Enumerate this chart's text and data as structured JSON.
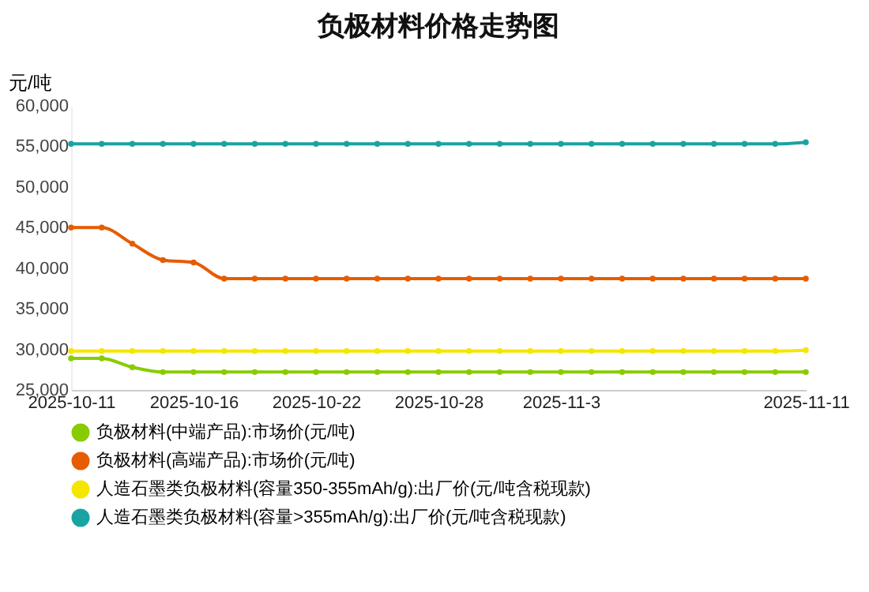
{
  "chart_data": {
    "type": "line",
    "title": "负极材料价格走势图",
    "ylabel": "元/吨",
    "categories": [
      "2025-10-11",
      null,
      null,
      null,
      "2025-10-16",
      null,
      null,
      null,
      "2025-10-22",
      null,
      null,
      null,
      "2025-10-28",
      null,
      null,
      null,
      "2025-11-3",
      null,
      null,
      null,
      null,
      null,
      null,
      null,
      "2025-11-11"
    ],
    "series": [
      {
        "name": "负极材料(中端产品):市场价(元/吨)",
        "color": "#88cc00",
        "values": [
          28900,
          28900,
          27800,
          27200,
          27200,
          27200,
          27200,
          27200,
          27200,
          27200,
          27200,
          27200,
          27200,
          27200,
          27200,
          27200,
          27200,
          27200,
          27200,
          27200,
          27200,
          27200,
          27200,
          27200,
          27200
        ]
      },
      {
        "name": "负极材料(高端产品):市场价(元/吨)",
        "color": "#e65c00",
        "values": [
          45000,
          45000,
          43000,
          41000,
          40700,
          38700,
          38700,
          38700,
          38700,
          38700,
          38700,
          38700,
          38700,
          38700,
          38700,
          38700,
          38700,
          38700,
          38700,
          38700,
          38700,
          38700,
          38700,
          38700,
          38700
        ]
      },
      {
        "name": "人造石墨类负极材料(容量350-355mAh/g):出厂价(元/吨含税现款)",
        "color": "#f5e600",
        "values": [
          29800,
          29800,
          29800,
          29800,
          29800,
          29800,
          29800,
          29800,
          29800,
          29800,
          29800,
          29800,
          29800,
          29800,
          29800,
          29800,
          29800,
          29800,
          29800,
          29800,
          29800,
          29800,
          29800,
          29800,
          29900
        ]
      },
      {
        "name": "人造石墨类负极材料(容量>355mAh/g):出厂价(元/吨含税现款)",
        "color": "#1aa3a3",
        "values": [
          55300,
          55300,
          55300,
          55300,
          55300,
          55300,
          55300,
          55300,
          55300,
          55300,
          55300,
          55300,
          55300,
          55300,
          55300,
          55300,
          55300,
          55300,
          55300,
          55300,
          55300,
          55300,
          55300,
          55300,
          55500
        ]
      }
    ],
    "ylim": [
      25000,
      60000
    ],
    "yticks": [
      {
        "value": 25000,
        "label": "25,000"
      },
      {
        "value": 30000,
        "label": "30,000"
      },
      {
        "value": 35000,
        "label": "35,000"
      },
      {
        "value": 40000,
        "label": "40,000"
      },
      {
        "value": 45000,
        "label": "45,000"
      },
      {
        "value": 50000,
        "label": "50,000"
      },
      {
        "value": 55000,
        "label": "55,000"
      },
      {
        "value": 60000,
        "label": "60,000"
      }
    ],
    "grid": false,
    "legend": "bottom",
    "marker": "circle"
  }
}
